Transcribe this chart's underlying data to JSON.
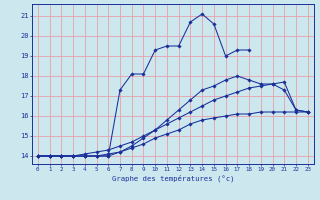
{
  "xlabel": "Graphe des températures (°c)",
  "bg_color": "#cce8ee",
  "grid_color": "#e8a0a8",
  "line_color": "#1a2f9a",
  "xlim": [
    -0.5,
    23.5
  ],
  "ylim": [
    13.6,
    21.6
  ],
  "yticks": [
    14,
    15,
    16,
    17,
    18,
    19,
    20,
    21
  ],
  "xticks": [
    0,
    1,
    2,
    3,
    4,
    5,
    6,
    7,
    8,
    9,
    10,
    11,
    12,
    13,
    14,
    15,
    16,
    17,
    18,
    19,
    20,
    21,
    22,
    23
  ],
  "lines": [
    {
      "x": [
        0,
        1,
        2,
        3,
        4,
        5,
        6,
        7,
        8,
        9,
        10,
        11,
        12,
        13,
        14,
        15,
        16,
        17,
        18
      ],
      "y": [
        14.0,
        14.0,
        14.0,
        14.0,
        14.0,
        14.0,
        14.0,
        17.3,
        18.1,
        18.1,
        19.3,
        19.5,
        19.5,
        20.7,
        21.1,
        20.6,
        19.0,
        19.3,
        19.3
      ]
    },
    {
      "x": [
        0,
        1,
        2,
        3,
        4,
        5,
        6,
        7,
        8,
        9,
        10,
        11,
        12,
        13,
        14,
        15,
        16,
        17,
        18,
        19,
        20,
        21,
        22,
        23
      ],
      "y": [
        14.0,
        14.0,
        14.0,
        14.0,
        14.0,
        14.0,
        14.0,
        14.2,
        14.5,
        14.9,
        15.3,
        15.8,
        16.3,
        16.8,
        17.3,
        17.5,
        17.8,
        18.0,
        17.8,
        17.6,
        17.6,
        17.3,
        16.3,
        16.2
      ]
    },
    {
      "x": [
        0,
        1,
        2,
        3,
        4,
        5,
        6,
        7,
        8,
        9,
        10,
        11,
        12,
        13,
        14,
        15,
        16,
        17,
        18,
        19,
        20,
        21,
        22,
        23
      ],
      "y": [
        14.0,
        14.0,
        14.0,
        14.0,
        14.1,
        14.2,
        14.3,
        14.5,
        14.7,
        15.0,
        15.3,
        15.6,
        15.9,
        16.2,
        16.5,
        16.8,
        17.0,
        17.2,
        17.4,
        17.5,
        17.6,
        17.7,
        16.3,
        16.2
      ]
    },
    {
      "x": [
        0,
        1,
        2,
        3,
        4,
        5,
        6,
        7,
        8,
        9,
        10,
        11,
        12,
        13,
        14,
        15,
        16,
        17,
        18,
        19,
        20,
        21,
        22,
        23
      ],
      "y": [
        14.0,
        14.0,
        14.0,
        14.0,
        14.0,
        14.0,
        14.1,
        14.2,
        14.4,
        14.6,
        14.9,
        15.1,
        15.3,
        15.6,
        15.8,
        15.9,
        16.0,
        16.1,
        16.1,
        16.2,
        16.2,
        16.2,
        16.2,
        16.2
      ]
    }
  ]
}
